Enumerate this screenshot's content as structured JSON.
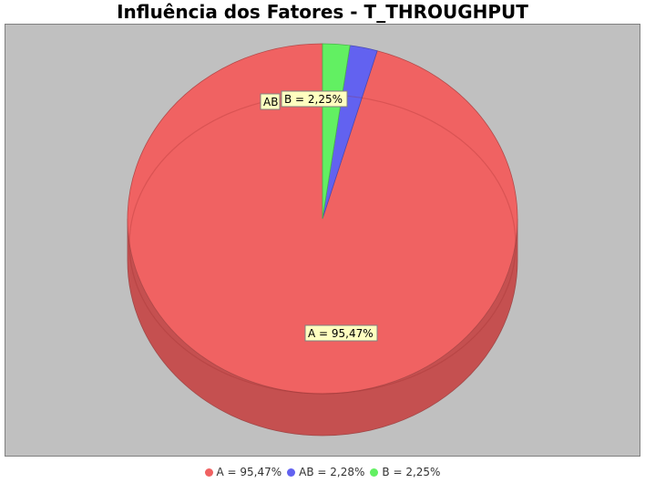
{
  "chart_data": {
    "type": "pie",
    "title": "Influência dos Fatores - T_THROUGHPUT",
    "slices": [
      {
        "name": "A",
        "label": "A = 95,47%",
        "value": 95.47,
        "color": "#f06262"
      },
      {
        "name": "AB",
        "label": "AB = 2,28%",
        "value": 2.28,
        "color": "#6262f0"
      },
      {
        "name": "B",
        "label": "B = 2,25%",
        "value": 2.25,
        "color": "#62f062"
      }
    ],
    "slice_labels": {
      "A": "A = 95,47%",
      "AB": "AB",
      "B": "B = 2,25%"
    },
    "legend": [
      "A = 95,47%",
      "AB = 2,28%",
      "B = 2,25%"
    ],
    "legend_placement": "bottom",
    "background_color": "#c0c0c0"
  }
}
